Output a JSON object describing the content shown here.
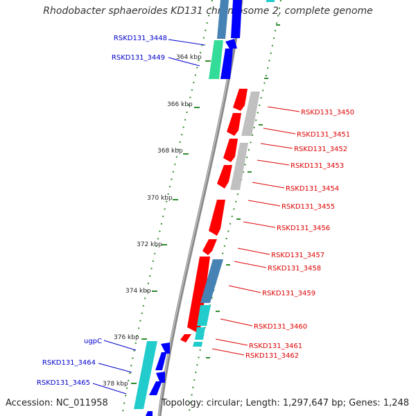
{
  "title": "Rhodobacter sphaeroides KD131 chromosome 2, complete genome",
  "footer": {
    "accession_label": "Accession: ",
    "accession": "NC_011958",
    "topology_label": "Topology: ",
    "topology": "circular",
    "length_label": "; Length: ",
    "length": "1,297,647 bp",
    "genes_label": "; Genes: ",
    "genes": "1,248"
  },
  "colors": {
    "backbone": "#8a8a8a",
    "tick": "#2e8b2e",
    "forward_gene_label": "#0000cc",
    "reverse_gene_label": "#dd0000",
    "cds_forward": "#0000ff",
    "cds_reverse": "#ff0000",
    "blast_teal": "#22cccc",
    "blast_steel": "#4682b4",
    "blast_green": "#33dd99",
    "blast_gray": "#c0c0c0"
  },
  "scale_labels": [
    "364 kbp",
    "366 kbp",
    "368 kbp",
    "370 kbp",
    "372 kbp",
    "374 kbp",
    "376 kbp",
    "378 kbp"
  ],
  "forward_genes": [
    "RSKD131_3448",
    "RSKD131_3449",
    "ugpC",
    "RSKD131_3464",
    "RSKD131_3465"
  ],
  "reverse_genes": [
    "RSKD131_3450",
    "RSKD131_3451",
    "RSKD131_3452",
    "RSKD131_3453",
    "RSKD131_3454",
    "RSKD131_3455",
    "RSKD131_3456",
    "RSKD131_3457",
    "RSKD131_3458",
    "RSKD131_3459",
    "RSKD131_3460",
    "RSKD131_3461",
    "RSKD131_3462"
  ]
}
